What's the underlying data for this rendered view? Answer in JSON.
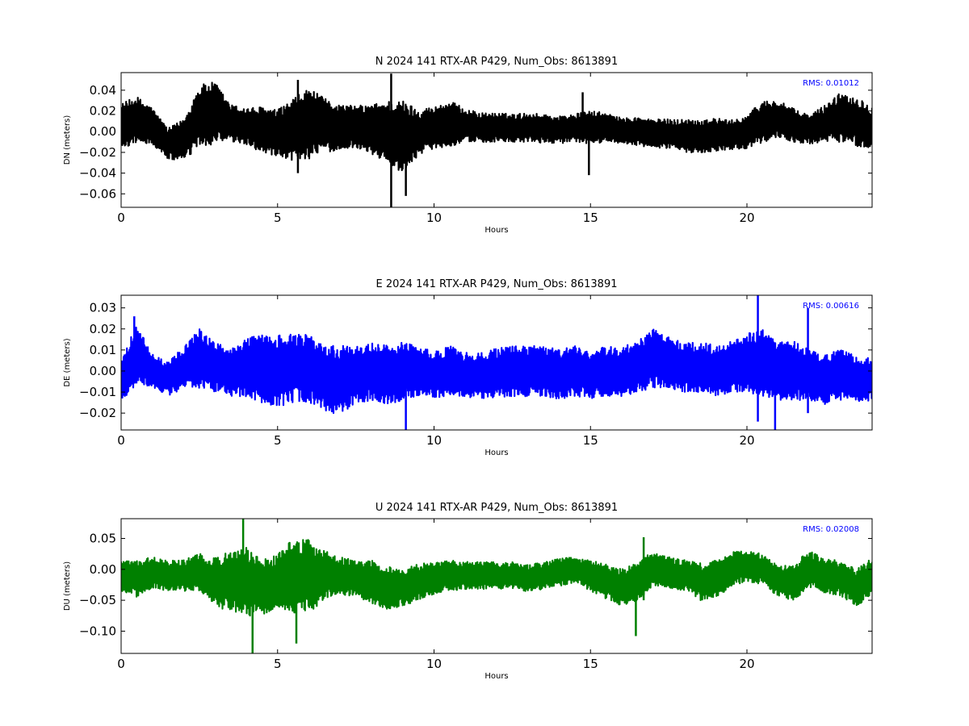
{
  "chart_data": [
    {
      "type": "line",
      "title": "N 2024 141 RTX-AR  P429, Num_Obs: 8613891",
      "xlabel": "Hours",
      "ylabel": "DN (meters)",
      "xlim": [
        0,
        24
      ],
      "ylim": [
        -0.073,
        0.057
      ],
      "xticks": [
        0,
        5,
        10,
        15,
        20
      ],
      "yticks": [
        -0.06,
        -0.04,
        -0.02,
        0.0,
        0.02,
        0.04
      ],
      "grid": false,
      "rms_label": "RMS:  0.01012",
      "rms_color": "#0000ff",
      "series": [
        {
          "color": "#000000",
          "x": [
            0,
            0.5,
            1,
            1.5,
            2,
            2.5,
            3,
            3.5,
            4,
            4.5,
            5,
            5.5,
            6,
            6.5,
            7,
            7.5,
            8,
            8.5,
            9,
            9.5,
            10,
            10.5,
            11,
            11.5,
            12,
            12.5,
            13,
            13.5,
            14,
            14.5,
            15,
            15.5,
            16,
            16.5,
            17,
            17.5,
            18,
            18.5,
            19,
            19.5,
            20,
            20.5,
            21,
            21.5,
            22,
            22.5,
            23,
            23.5,
            24
          ],
          "center": [
            0.005,
            0.012,
            0.005,
            -0.012,
            -0.008,
            0.015,
            0.018,
            0.008,
            0.005,
            0.002,
            -0.003,
            0.002,
            0.008,
            0.006,
            0.004,
            0.005,
            0.002,
            0.0,
            -0.005,
            0.0,
            0.004,
            0.008,
            0.006,
            0.004,
            0.004,
            0.003,
            0.004,
            0.003,
            0.002,
            0.003,
            0.004,
            0.004,
            0.001,
            0.0,
            -0.002,
            -0.002,
            -0.004,
            -0.004,
            -0.003,
            -0.003,
            0.0,
            0.01,
            0.012,
            0.006,
            0.002,
            0.008,
            0.014,
            0.01,
            0.004
          ],
          "amp": [
            0.022,
            0.022,
            0.018,
            0.015,
            0.02,
            0.03,
            0.03,
            0.018,
            0.018,
            0.022,
            0.024,
            0.03,
            0.034,
            0.026,
            0.022,
            0.02,
            0.024,
            0.03,
            0.035,
            0.022,
            0.02,
            0.022,
            0.016,
            0.014,
            0.014,
            0.014,
            0.014,
            0.014,
            0.013,
            0.014,
            0.016,
            0.014,
            0.012,
            0.014,
            0.014,
            0.014,
            0.016,
            0.016,
            0.016,
            0.014,
            0.016,
            0.02,
            0.018,
            0.016,
            0.014,
            0.018,
            0.024,
            0.024,
            0.02
          ],
          "spikes": [
            [
              8.63,
              -0.073,
              0.056
            ],
            [
              14.75,
              -0.01,
              0.038
            ],
            [
              14.95,
              -0.042,
              0.01
            ],
            [
              9.1,
              -0.062,
              0.0
            ],
            [
              5.65,
              -0.04,
              0.05
            ]
          ]
        }
      ]
    },
    {
      "type": "line",
      "title": "E 2024 141 RTX-AR  P429, Num_Obs: 8613891",
      "xlabel": "Hours",
      "ylabel": "DE (meters)",
      "xlim": [
        0,
        24
      ],
      "ylim": [
        -0.028,
        0.036
      ],
      "xticks": [
        0,
        5,
        10,
        15,
        20
      ],
      "yticks": [
        -0.02,
        -0.01,
        0.0,
        0.01,
        0.02,
        0.03
      ],
      "grid": false,
      "rms_label": "RMS:  0.00616",
      "rms_color": "#0000ff",
      "series": [
        {
          "color": "#0000ff",
          "x": [
            0,
            0.5,
            1,
            1.5,
            2,
            2.5,
            3,
            3.5,
            4,
            4.5,
            5,
            5.5,
            6,
            6.5,
            7,
            7.5,
            8,
            8.5,
            9,
            9.5,
            10,
            10.5,
            11,
            11.5,
            12,
            12.5,
            13,
            13.5,
            14,
            14.5,
            15,
            15.5,
            16,
            16.5,
            17,
            17.5,
            18,
            18.5,
            19,
            19.5,
            20,
            20.5,
            21,
            21.5,
            22,
            22.5,
            23,
            23.5,
            24
          ],
          "center": [
            -0.004,
            0.008,
            0.0,
            -0.004,
            0.002,
            0.006,
            0.002,
            0.0,
            0.002,
            0.001,
            0.0,
            0.002,
            0.001,
            -0.004,
            -0.004,
            -0.002,
            0.0,
            -0.002,
            0.0,
            0.0,
            -0.002,
            0.0,
            -0.002,
            -0.002,
            -0.001,
            0.0,
            0.0,
            0.0,
            -0.002,
            0.0,
            -0.002,
            0.0,
            0.0,
            0.002,
            0.006,
            0.004,
            0.002,
            0.002,
            0.0,
            0.002,
            0.004,
            0.004,
            0.0,
            0.0,
            -0.002,
            -0.004,
            -0.002,
            -0.004,
            -0.004
          ],
          "amp": [
            0.01,
            0.014,
            0.008,
            0.008,
            0.01,
            0.014,
            0.012,
            0.012,
            0.014,
            0.016,
            0.017,
            0.017,
            0.016,
            0.016,
            0.016,
            0.014,
            0.014,
            0.014,
            0.014,
            0.012,
            0.011,
            0.012,
            0.011,
            0.011,
            0.012,
            0.012,
            0.012,
            0.012,
            0.012,
            0.012,
            0.011,
            0.012,
            0.012,
            0.012,
            0.014,
            0.012,
            0.012,
            0.012,
            0.012,
            0.012,
            0.014,
            0.016,
            0.014,
            0.014,
            0.012,
            0.012,
            0.012,
            0.011,
            0.01
          ],
          "spikes": [
            [
              20.35,
              -0.024,
              0.036
            ],
            [
              21.95,
              -0.02,
              0.03
            ],
            [
              9.1,
              -0.028,
              0.0
            ],
            [
              20.9,
              -0.028,
              0.0
            ],
            [
              0.42,
              -0.004,
              0.026
            ]
          ]
        }
      ]
    },
    {
      "type": "line",
      "title": "U 2024 141 RTX-AR  P429, Num_Obs: 8613891",
      "xlabel": "Hours",
      "ylabel": "DU (meters)",
      "xlim": [
        0,
        24
      ],
      "ylim": [
        -0.136,
        0.082
      ],
      "xticks": [
        0,
        5,
        10,
        15,
        20
      ],
      "yticks": [
        -0.1,
        -0.05,
        0.0,
        0.05
      ],
      "grid": false,
      "rms_label": "RMS:  0.02008",
      "rms_color": "#0000ff",
      "series": [
        {
          "color": "#008000",
          "x": [
            0,
            0.5,
            1,
            1.5,
            2,
            2.5,
            3,
            3.5,
            4,
            4.5,
            5,
            5.5,
            6,
            6.5,
            7,
            7.5,
            8,
            8.5,
            9,
            9.5,
            10,
            10.5,
            11,
            11.5,
            12,
            12.5,
            13,
            13.5,
            14,
            14.5,
            15,
            15.5,
            16,
            16.5,
            17,
            17.5,
            18,
            18.5,
            19,
            19.5,
            20,
            20.5,
            21,
            21.5,
            22,
            22.5,
            23,
            23.5,
            24
          ],
          "center": [
            -0.01,
            -0.015,
            -0.005,
            -0.01,
            -0.01,
            -0.005,
            -0.02,
            -0.02,
            -0.02,
            -0.03,
            -0.02,
            -0.01,
            -0.01,
            -0.01,
            -0.01,
            -0.015,
            -0.02,
            -0.03,
            -0.03,
            -0.02,
            -0.015,
            -0.01,
            -0.01,
            -0.01,
            -0.01,
            -0.01,
            -0.015,
            -0.01,
            -0.005,
            0.0,
            -0.01,
            -0.02,
            -0.03,
            -0.02,
            0.0,
            -0.005,
            -0.01,
            -0.02,
            -0.015,
            0.0,
            0.005,
            0.0,
            -0.02,
            -0.02,
            0.0,
            -0.01,
            -0.015,
            -0.03,
            -0.01
          ],
          "amp": [
            0.025,
            0.03,
            0.025,
            0.025,
            0.025,
            0.03,
            0.04,
            0.05,
            0.055,
            0.045,
            0.045,
            0.06,
            0.06,
            0.04,
            0.03,
            0.03,
            0.035,
            0.035,
            0.03,
            0.03,
            0.025,
            0.025,
            0.022,
            0.022,
            0.022,
            0.022,
            0.022,
            0.022,
            0.022,
            0.022,
            0.025,
            0.028,
            0.03,
            0.03,
            0.03,
            0.025,
            0.025,
            0.03,
            0.03,
            0.028,
            0.025,
            0.025,
            0.025,
            0.03,
            0.03,
            0.028,
            0.028,
            0.03,
            0.028
          ],
          "spikes": [
            [
              3.9,
              -0.02,
              0.082
            ],
            [
              4.2,
              -0.136,
              -0.03
            ],
            [
              5.6,
              -0.12,
              -0.02
            ],
            [
              16.45,
              -0.108,
              -0.02
            ],
            [
              16.7,
              -0.05,
              0.052
            ]
          ]
        }
      ]
    }
  ]
}
